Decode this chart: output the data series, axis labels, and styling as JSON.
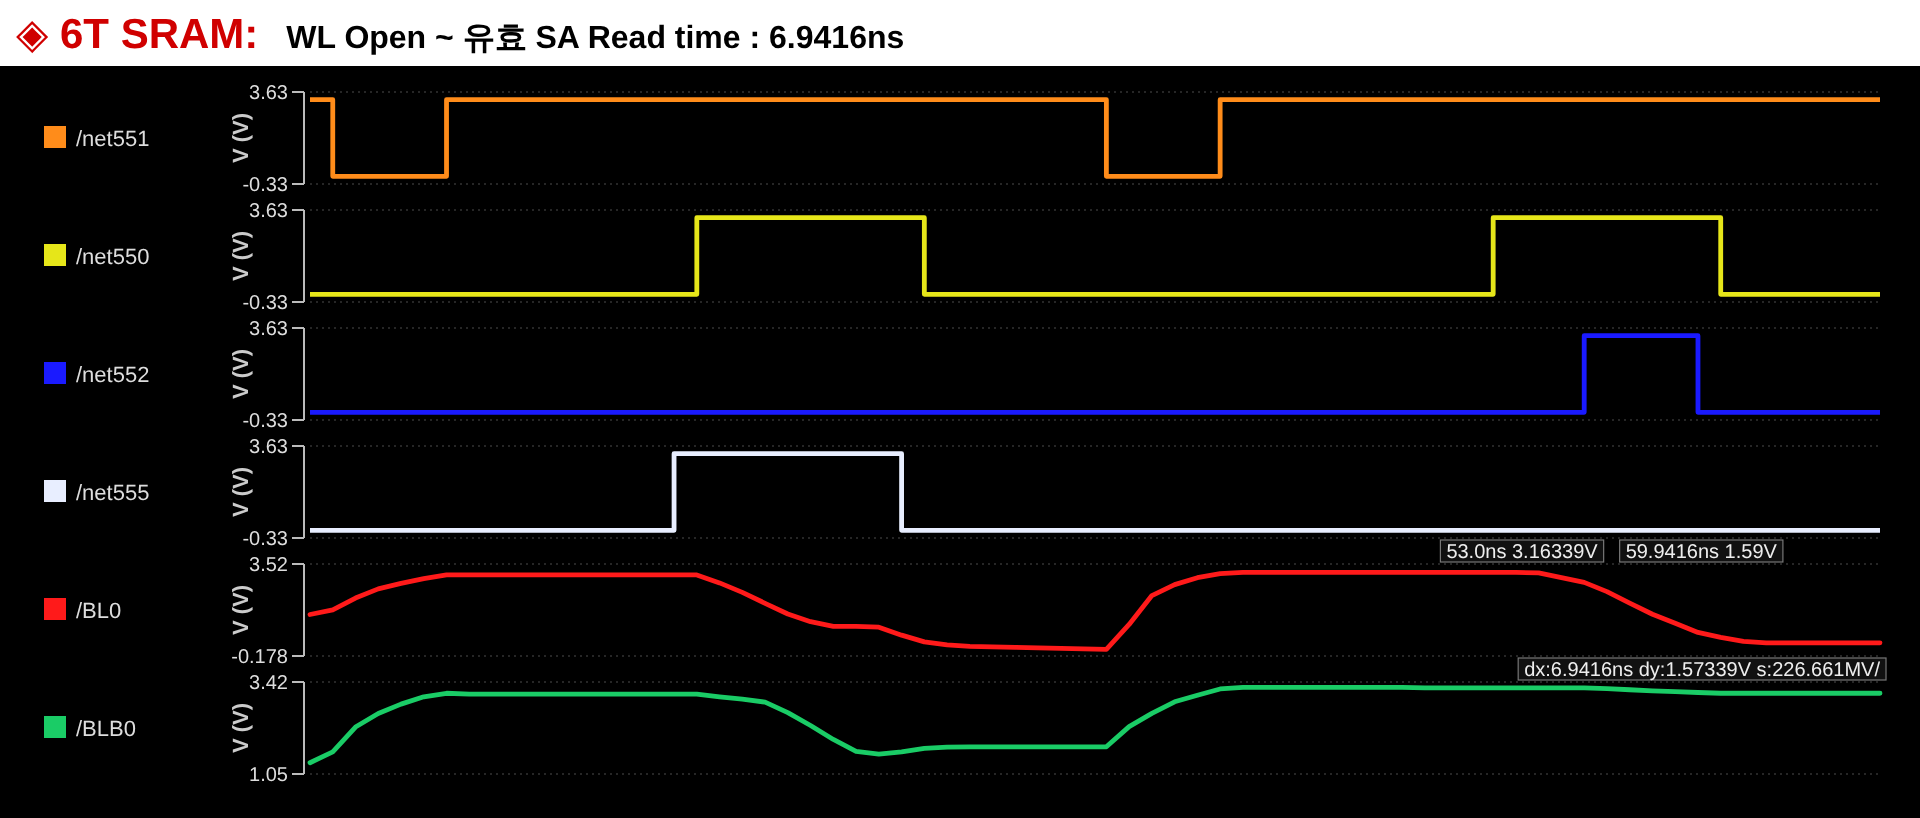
{
  "chart_data": [
    {
      "type": "step",
      "title": "◈ 6T SRAM:",
      "subtitle": "WL Open ~ 유효 SA Read time : 6.9416ns",
      "ylabel": "V (V)",
      "ylim": [
        -0.33,
        3.63
      ],
      "yticks": [
        -0.33,
        3.63
      ],
      "tick_labels": "y",
      "legend": "left",
      "categories": [
        null,
        null,
        null,
        null,
        null,
        null,
        null,
        null,
        null,
        null,
        null,
        null,
        null,
        null,
        null,
        null,
        null,
        null,
        null,
        null,
        null,
        null,
        null,
        null,
        null,
        null,
        null,
        null,
        null,
        null,
        null,
        null,
        null,
        null,
        null,
        null,
        null,
        null,
        null,
        null,
        null,
        null,
        null,
        null,
        null,
        null,
        null,
        null,
        null,
        null,
        null,
        null,
        null,
        null,
        null,
        null,
        null,
        null,
        null,
        null,
        null,
        null,
        null,
        null,
        null,
        null,
        null,
        null,
        null,
        null
      ],
      "series": [
        {
          "name": "/net551",
          "color": "#ff8c1a",
          "values": [
            3.3,
            0,
            0,
            0,
            0,
            0,
            3.3,
            3.3,
            3.3,
            3.3,
            3.3,
            3.3,
            3.3,
            3.3,
            3.3,
            3.3,
            3.3,
            3.3,
            3.3,
            3.3,
            3.3,
            3.3,
            3.3,
            3.3,
            3.3,
            3.3,
            3.3,
            3.3,
            3.3,
            3.3,
            3.3,
            3.3,
            3.3,
            3.3,
            3.3,
            0,
            0,
            0,
            0,
            0,
            3.3,
            3.3,
            3.3,
            3.3,
            3.3,
            3.3,
            3.3,
            3.3,
            3.3,
            3.3,
            3.3,
            3.3,
            3.3,
            3.3,
            3.3,
            3.3,
            3.3,
            3.3,
            3.3,
            3.3,
            3.3,
            3.3,
            3.3,
            3.3,
            3.3,
            3.3,
            3.3,
            3.3,
            3.3,
            3.3
          ]
        }
      ]
    },
    {
      "type": "step",
      "ylabel": "V (V)",
      "ylim": [
        -0.33,
        3.63
      ],
      "yticks": [
        -0.33,
        3.63
      ],
      "tick_labels": "y",
      "legend": "left",
      "categories": [
        null,
        null,
        null,
        null,
        null,
        null,
        null,
        null,
        null,
        null,
        null,
        null,
        null,
        null,
        null,
        null,
        null,
        null,
        null,
        null,
        null,
        null,
        null,
        null,
        null,
        null,
        null,
        null,
        null,
        null,
        null,
        null,
        null,
        null,
        null,
        null,
        null,
        null,
        null,
        null,
        null,
        null,
        null,
        null,
        null,
        null,
        null,
        null,
        null,
        null,
        null,
        null,
        null,
        null,
        null,
        null,
        null,
        null,
        null,
        null,
        null,
        null,
        null,
        null,
        null,
        null,
        null,
        null,
        null,
        null
      ],
      "series": [
        {
          "name": "/net550",
          "color": "#e6e619",
          "values": [
            0,
            0,
            0,
            0,
            0,
            0,
            0,
            0,
            0,
            0,
            0,
            0,
            0,
            0,
            0,
            0,
            0,
            3.3,
            3.3,
            3.3,
            3.3,
            3.3,
            3.3,
            3.3,
            3.3,
            3.3,
            3.3,
            0,
            0,
            0,
            0,
            0,
            0,
            0,
            0,
            0,
            0,
            0,
            0,
            0,
            0,
            0,
            0,
            0,
            0,
            0,
            0,
            0,
            0,
            0,
            0,
            0,
            3.3,
            3.3,
            3.3,
            3.3,
            3.3,
            3.3,
            3.3,
            3.3,
            3.3,
            3.3,
            0,
            0,
            0,
            0,
            0,
            0,
            0,
            0
          ]
        }
      ]
    },
    {
      "type": "step",
      "ylabel": "V (V)",
      "ylim": [
        -0.33,
        3.63
      ],
      "yticks": [
        -0.33,
        3.63
      ],
      "tick_labels": "y",
      "legend": "left",
      "categories": [
        null,
        null,
        null,
        null,
        null,
        null,
        null,
        null,
        null,
        null,
        null,
        null,
        null,
        null,
        null,
        null,
        null,
        null,
        null,
        null,
        null,
        null,
        null,
        null,
        null,
        null,
        null,
        null,
        null,
        null,
        null,
        null,
        null,
        null,
        null,
        null,
        null,
        null,
        null,
        null,
        null,
        null,
        null,
        null,
        null,
        null,
        null,
        null,
        null,
        null,
        null,
        null,
        null,
        null,
        null,
        null,
        null,
        null,
        null,
        null,
        null,
        null,
        null,
        null,
        null,
        null,
        null,
        null,
        null,
        null
      ],
      "series": [
        {
          "name": "/net552",
          "color": "#1a1aff",
          "values": [
            0,
            0,
            0,
            0,
            0,
            0,
            0,
            0,
            0,
            0,
            0,
            0,
            0,
            0,
            0,
            0,
            0,
            0,
            0,
            0,
            0,
            0,
            0,
            0,
            0,
            0,
            0,
            0,
            0,
            0,
            0,
            0,
            0,
            0,
            0,
            0,
            0,
            0,
            0,
            0,
            0,
            0,
            0,
            0,
            0,
            0,
            0,
            0,
            0,
            0,
            0,
            0,
            0,
            0,
            0,
            0,
            3.3,
            3.3,
            3.3,
            3.3,
            3.3,
            0,
            0,
            0,
            0,
            0,
            0,
            0,
            0,
            0
          ]
        }
      ]
    },
    {
      "type": "step",
      "ylabel": "V (V)",
      "ylim": [
        -0.33,
        3.63
      ],
      "yticks": [
        -0.33,
        3.63
      ],
      "tick_labels": "y",
      "legend": "left",
      "categories": [
        null,
        null,
        null,
        null,
        null,
        null,
        null,
        null,
        null,
        null,
        null,
        null,
        null,
        null,
        null,
        null,
        null,
        null,
        null,
        null,
        null,
        null,
        null,
        null,
        null,
        null,
        null,
        null,
        null,
        null,
        null,
        null,
        null,
        null,
        null,
        null,
        null,
        null,
        null,
        null,
        null,
        null,
        null,
        null,
        null,
        null,
        null,
        null,
        null,
        null,
        null,
        null,
        null,
        null,
        null,
        null,
        null,
        null,
        null,
        null,
        null,
        null,
        null,
        null,
        null,
        null,
        null,
        null,
        null,
        null
      ],
      "series": [
        {
          "name": "/net555",
          "color": "#e8eeff",
          "values": [
            0,
            0,
            0,
            0,
            0,
            0,
            0,
            0,
            0,
            0,
            0,
            0,
            0,
            0,
            0,
            0,
            3.3,
            3.3,
            3.3,
            3.3,
            3.3,
            3.3,
            3.3,
            3.3,
            3.3,
            3.3,
            0,
            0,
            0,
            0,
            0,
            0,
            0,
            0,
            0,
            0,
            0,
            0,
            0,
            0,
            0,
            0,
            0,
            0,
            0,
            0,
            0,
            0,
            0,
            0,
            0,
            0,
            0,
            0,
            0,
            0,
            0,
            0,
            0,
            0,
            0,
            0,
            0,
            0,
            0,
            0,
            0,
            0,
            0,
            0
          ]
        }
      ]
    },
    {
      "type": "line",
      "ylabel": "V (V)",
      "ylim": [
        -0.178,
        3.52
      ],
      "yticks": [
        -0.178,
        3.52
      ],
      "tick_labels": "y",
      "legend": "left",
      "categories": [
        null,
        null,
        null,
        null,
        null,
        null,
        null,
        null,
        null,
        null,
        null,
        null,
        null,
        null,
        null,
        null,
        null,
        null,
        null,
        null,
        null,
        null,
        null,
        null,
        null,
        null,
        null,
        null,
        null,
        null,
        null,
        null,
        null,
        null,
        null,
        null,
        null,
        null,
        null,
        null,
        null,
        null,
        null,
        null,
        null,
        null,
        null,
        null,
        null,
        null,
        null,
        null,
        null,
        null,
        null,
        null,
        null,
        null,
        null,
        null,
        null,
        null,
        null,
        null,
        null,
        null,
        null,
        null,
        null,
        null
      ],
      "series": [
        {
          "name": "/BL0",
          "color": "#ff1a1a",
          "values": [
            1.49,
            1.68,
            2.15,
            2.52,
            2.74,
            2.93,
            3.08,
            3.08,
            3.08,
            3.08,
            3.08,
            3.08,
            3.08,
            3.08,
            3.08,
            3.08,
            3.08,
            3.08,
            2.76,
            2.38,
            1.94,
            1.51,
            1.2,
            1.01,
            1.01,
            0.98,
            0.66,
            0.39,
            0.27,
            0.21,
            0.19,
            0.17,
            0.15,
            0.13,
            0.11,
            0.09,
            1.09,
            2.25,
            2.69,
            2.97,
            3.13,
            3.18,
            3.18,
            3.18,
            3.18,
            3.18,
            3.18,
            3.18,
            3.18,
            3.18,
            3.18,
            3.18,
            3.18,
            3.18,
            3.16,
            2.97,
            2.78,
            2.41,
            1.95,
            1.5,
            1.14,
            0.77,
            0.57,
            0.41,
            0.35,
            0.35,
            0.35,
            0.35,
            0.35,
            0.35
          ]
        }
      ],
      "annotations": [
        "53.0ns 3.16339V",
        "59.9416ns 1.59V",
        "dx:6.9416ns dy:1.57339V s:226.661MV/"
      ]
    },
    {
      "type": "line",
      "ylabel": "V (V)",
      "ylim": [
        1.05,
        3.42
      ],
      "yticks": [
        1.05,
        3.42
      ],
      "tick_labels": "y",
      "legend": "left",
      "categories": [
        null,
        null,
        null,
        null,
        null,
        null,
        null,
        null,
        null,
        null,
        null,
        null,
        null,
        null,
        null,
        null,
        null,
        null,
        null,
        null,
        null,
        null,
        null,
        null,
        null,
        null,
        null,
        null,
        null,
        null,
        null,
        null,
        null,
        null,
        null,
        null,
        null,
        null,
        null,
        null,
        null,
        null,
        null,
        null,
        null,
        null,
        null,
        null,
        null,
        null,
        null,
        null,
        null,
        null,
        null,
        null,
        null,
        null,
        null,
        null,
        null,
        null,
        null,
        null,
        null,
        null,
        null,
        null,
        null,
        null
      ],
      "series": [
        {
          "name": "/BLB0",
          "color": "#1acc66",
          "values": [
            1.34,
            1.62,
            2.26,
            2.61,
            2.85,
            3.04,
            3.13,
            3.11,
            3.11,
            3.11,
            3.11,
            3.11,
            3.11,
            3.11,
            3.11,
            3.11,
            3.11,
            3.11,
            3.04,
            2.98,
            2.9,
            2.63,
            2.3,
            1.94,
            1.63,
            1.56,
            1.62,
            1.71,
            1.74,
            1.75,
            1.75,
            1.75,
            1.75,
            1.75,
            1.75,
            1.75,
            2.27,
            2.61,
            2.91,
            3.08,
            3.24,
            3.28,
            3.28,
            3.28,
            3.28,
            3.28,
            3.28,
            3.28,
            3.28,
            3.27,
            3.27,
            3.27,
            3.27,
            3.27,
            3.27,
            3.27,
            3.27,
            3.25,
            3.22,
            3.19,
            3.17,
            3.15,
            3.13,
            3.13,
            3.13,
            3.13,
            3.13,
            3.13,
            3.13,
            3.13
          ]
        }
      ]
    }
  ]
}
